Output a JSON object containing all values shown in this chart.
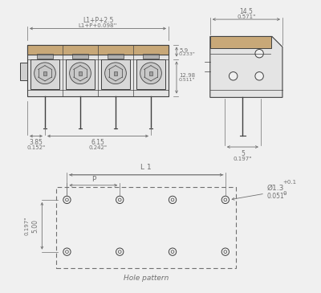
{
  "bg_color": "#f0f0f0",
  "line_color": "#404040",
  "dim_color": "#707070",
  "title": "Hole pattern",
  "annotations": {
    "top_dim1": "L1+P+2.5",
    "top_dim2": "L1+P+0.098''",
    "side_dim1": "5.9",
    "side_dim1_in": "0.233\"",
    "side_dim2": "12.98",
    "side_dim2_in": "0.511\"",
    "right_top": "14.5",
    "right_top_in": "0.571\"",
    "right_bot": "5",
    "right_bot_in": "0.197\"",
    "bot_left": "3.85",
    "bot_left_in": "0.152\"",
    "bot_right": "6.15",
    "bot_right_in": "0.242\"",
    "hole_left": "5.00",
    "hole_left_in": "0.197\"",
    "hole_dim": "Ø1.3",
    "hole_tol": "+0.1",
    "hole_tol2": "0",
    "hole_in": "0.051\"",
    "L1": "L 1",
    "P": "P"
  }
}
